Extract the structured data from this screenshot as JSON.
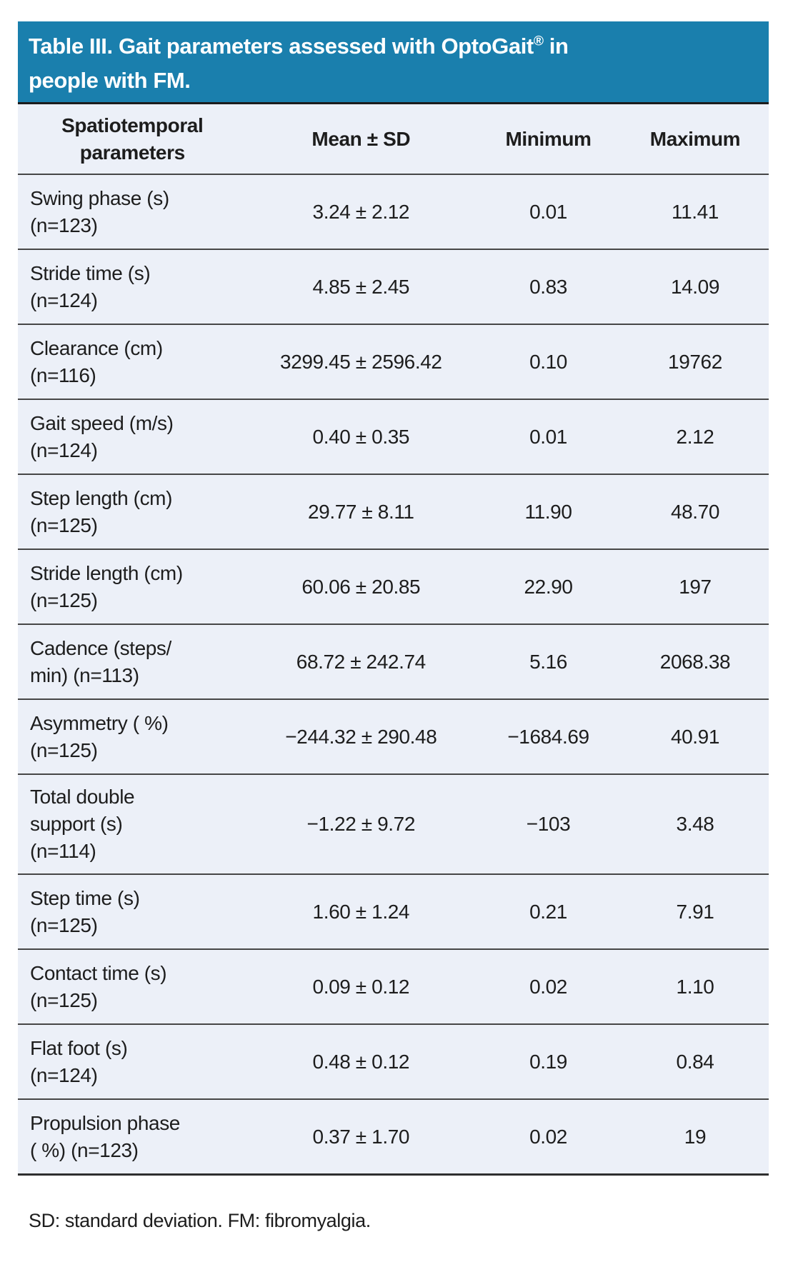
{
  "title": {
    "part1": "Table III. Gait parameters assessed with OptoGait",
    "sup": "®",
    "part2": " in",
    "line2": "people with FM."
  },
  "columns": [
    "Spatiotemporal\nparameters",
    "Mean ± SD",
    "Minimum",
    "Maximum"
  ],
  "rows": [
    {
      "parameter": "Swing phase (s)\n(n=123)",
      "mean_sd": "3.24 ± 2.12",
      "minimum": "0.01",
      "maximum": "11.41"
    },
    {
      "parameter": "Stride time (s)\n(n=124)",
      "mean_sd": "4.85 ± 2.45",
      "minimum": "0.83",
      "maximum": "14.09"
    },
    {
      "parameter": "Clearance (cm)\n(n=116)",
      "mean_sd": "3299.45 ± 2596.42",
      "minimum": "0.10",
      "maximum": "19762"
    },
    {
      "parameter": "Gait speed (m/s)\n(n=124)",
      "mean_sd": "0.40 ± 0.35",
      "minimum": "0.01",
      "maximum": "2.12"
    },
    {
      "parameter": "Step length (cm)\n(n=125)",
      "mean_sd": "29.77 ± 8.11",
      "minimum": "11.90",
      "maximum": "48.70"
    },
    {
      "parameter": "Stride length (cm)\n(n=125)",
      "mean_sd": "60.06 ± 20.85",
      "minimum": "22.90",
      "maximum": "197"
    },
    {
      "parameter": "Cadence (steps/\nmin) (n=113)",
      "mean_sd": "68.72 ± 242.74",
      "minimum": "5.16",
      "maximum": "2068.38"
    },
    {
      "parameter": "Asymmetry ( %)\n(n=125)",
      "mean_sd": "−244.32 ± 290.48",
      "minimum": "−1684.69",
      "maximum": "40.91"
    },
    {
      "parameter": "Total double\nsupport (s)\n(n=114)",
      "mean_sd": "−1.22 ± 9.72",
      "minimum": "−103",
      "maximum": "3.48"
    },
    {
      "parameter": "Step time (s)\n(n=125)",
      "mean_sd": "1.60 ± 1.24",
      "minimum": "0.21",
      "maximum": "7.91"
    },
    {
      "parameter": "Contact time (s)\n(n=125)",
      "mean_sd": "0.09 ± 0.12",
      "minimum": "0.02",
      "maximum": "1.10"
    },
    {
      "parameter": "Flat foot (s)\n(n=124)",
      "mean_sd": "0.48 ± 0.12",
      "minimum": "0.19",
      "maximum": "0.84"
    },
    {
      "parameter": "Propulsion phase\n( %) (n=123)",
      "mean_sd": "0.37 ± 1.70",
      "minimum": "0.02",
      "maximum": "19"
    }
  ],
  "footnote": "SD: standard deviation. FM: fibromyalgia.",
  "colors": {
    "title_bg": "#1a7fad",
    "title_text": "#ffffff",
    "row_bg": "#ecf0f8",
    "divider": "#464646",
    "text": "#1d1d1d"
  }
}
